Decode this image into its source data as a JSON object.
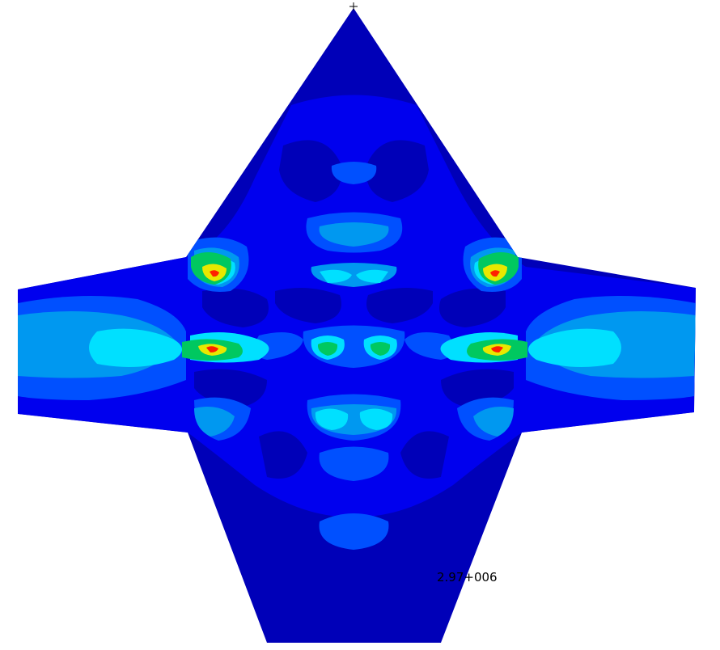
{
  "plot": {
    "peak_label": "2.97+006"
  },
  "colors": {
    "background": "#ffffff",
    "level_0": "#0000b8",
    "level_1": "#0000ee",
    "level_2": "#0050ff",
    "level_3": "#0098f0",
    "level_4": "#00e0ff",
    "level_5": "#00c860",
    "level_6": "#e8e800",
    "level_7": "#ff2000"
  }
}
